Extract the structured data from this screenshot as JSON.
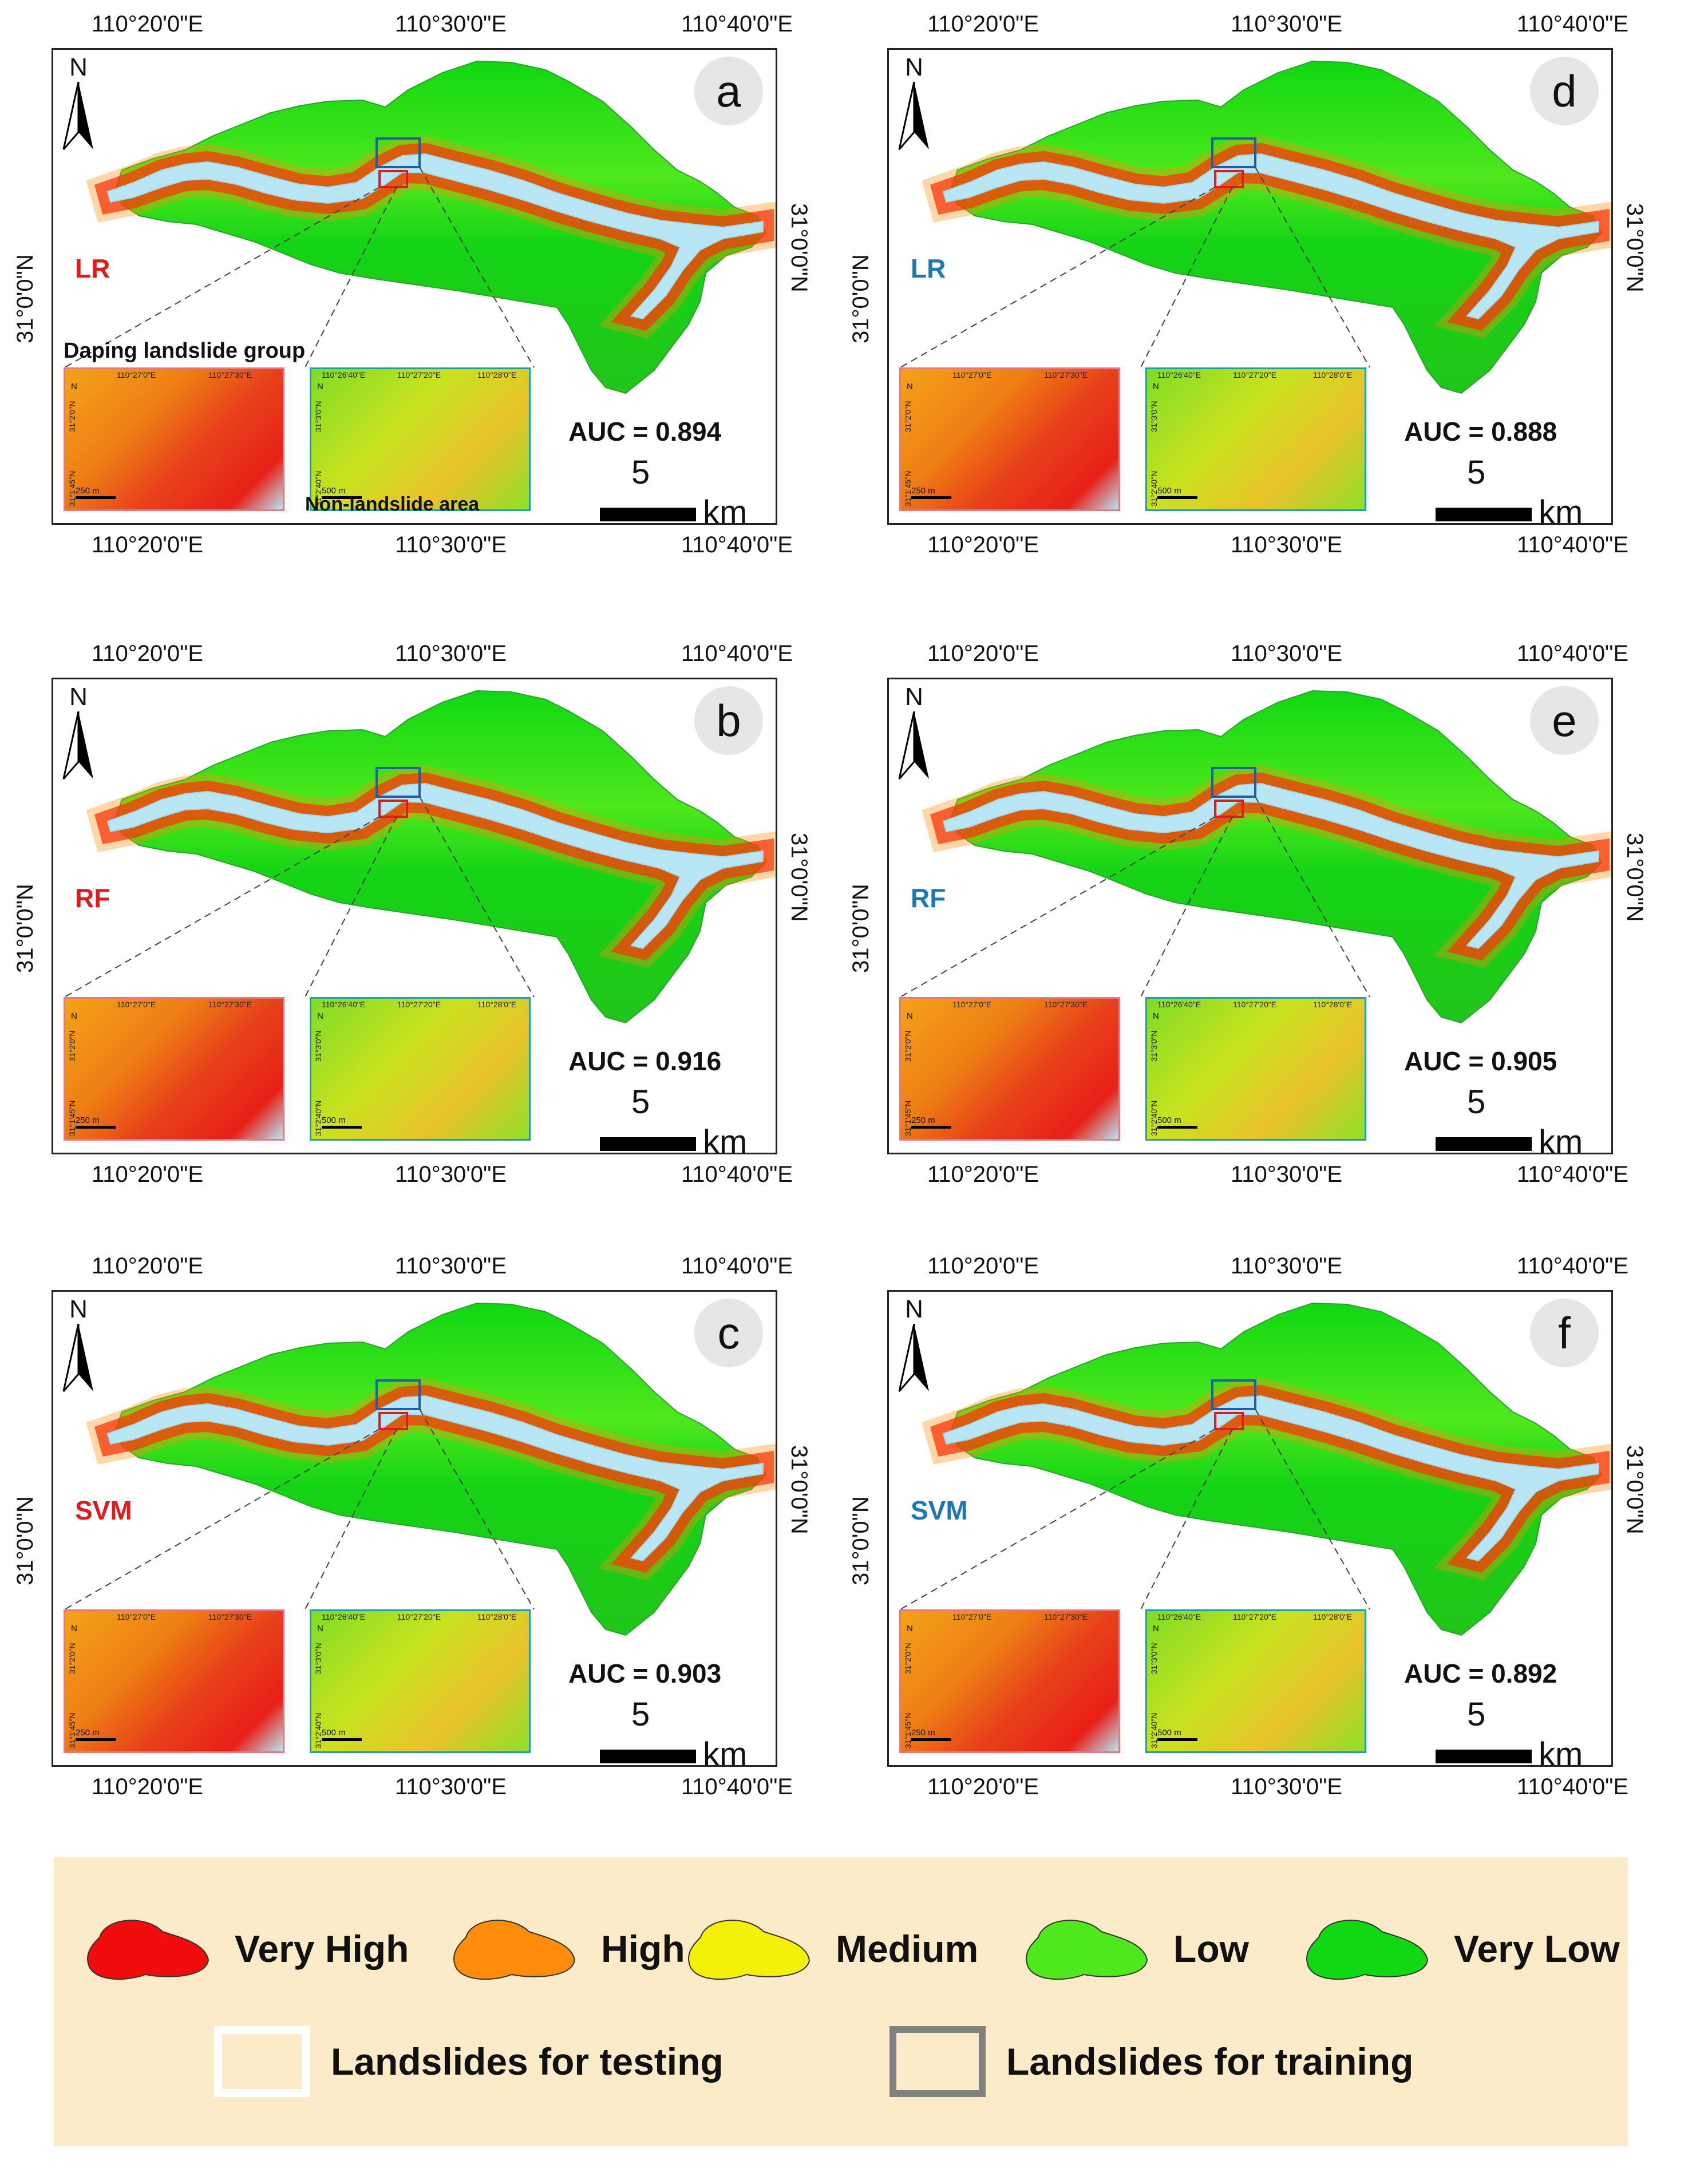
{
  "panels": [
    {
      "letter": "a",
      "model": "LR",
      "model_color": "#e31a1c",
      "auc": "AUC = 0.894",
      "title_extra": "Daping landslide group",
      "bottom_extra": "Non-landslide area"
    },
    {
      "letter": "d",
      "model": "LR",
      "model_color": "#1f78b4",
      "auc": "AUC = 0.888"
    },
    {
      "letter": "b",
      "model": "RF",
      "model_color": "#e31a1c",
      "auc": "AUC = 0.916"
    },
    {
      "letter": "e",
      "model": "RF",
      "model_color": "#1f78b4",
      "auc": "AUC = 0.905"
    },
    {
      "letter": "c",
      "model": "SVM",
      "model_color": "#e31a1c",
      "auc": "AUC = 0.903"
    },
    {
      "letter": "f",
      "model": "SVM",
      "model_color": "#1f78b4",
      "auc": "AUC = 0.892"
    }
  ],
  "axes": {
    "lon_ticks": [
      "110°20'0\"E",
      "110°30'0\"E",
      "110°40'0\"E"
    ],
    "lat_tick": "31°0'0\"N"
  },
  "north_label": "N",
  "scale": {
    "value": "5",
    "unit": "km"
  },
  "inset_left": {
    "ticks": [
      "110°27'0\"E",
      "110°27'30\"E"
    ],
    "lat_ticks": [
      "31°2'0\"N",
      "31°1'45\"N"
    ],
    "scale": "250",
    "scale_unit": "m",
    "border": "#e8787b"
  },
  "inset_right": {
    "ticks": [
      "110°26'40\"E",
      "110°27'20\"E",
      "110°28'0\"E"
    ],
    "lat_ticks": [
      "31°3'0\"N",
      "31°2'40\"N"
    ],
    "scale": "500",
    "scale_unit": "m",
    "border": "#1aa0a8"
  },
  "legend": {
    "classes": [
      {
        "label": "Very High",
        "color": "#f00c0c"
      },
      {
        "label": "High",
        "color": "#ff8c0a"
      },
      {
        "label": "Medium",
        "color": "#f3f00a"
      },
      {
        "label": "Low",
        "color": "#4fe81c"
      },
      {
        "label": "Very Low",
        "color": "#10d813"
      }
    ],
    "testing": {
      "label": "Landslides for testing",
      "color": "#ffffff"
    },
    "training": {
      "label": "Landslides for training",
      "color": "#808080"
    }
  }
}
